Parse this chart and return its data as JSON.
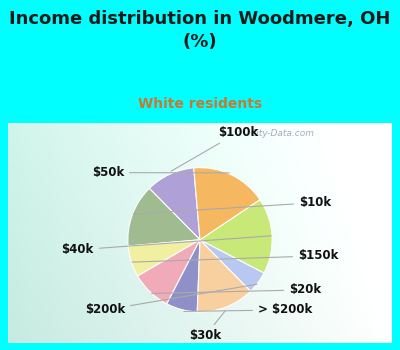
{
  "title": "Income distribution in Woodmere, OH\n(%)",
  "subtitle": "White residents",
  "title_color": "#1a1a1a",
  "subtitle_color": "#c87832",
  "background_cyan": "#00ffff",
  "watermark": "City-Data.com",
  "labels": [
    "$100k",
    "$10k",
    "$150k",
    "$20k",
    "> $200k",
    "$30k",
    "$200k",
    "$40k",
    "$50k"
  ],
  "values": [
    11,
    14,
    7,
    9,
    7,
    13,
    5,
    17,
    17
  ],
  "colors": [
    "#b0a0d8",
    "#a0bb90",
    "#f0f0a0",
    "#f0aab8",
    "#9090c8",
    "#f8d0a0",
    "#b8c8f0",
    "#c8e878",
    "#f5b860"
  ],
  "startangle": 95,
  "label_fontsize": 8.5,
  "label_color": "#111111",
  "title_fontsize": 13,
  "subtitle_fontsize": 10
}
